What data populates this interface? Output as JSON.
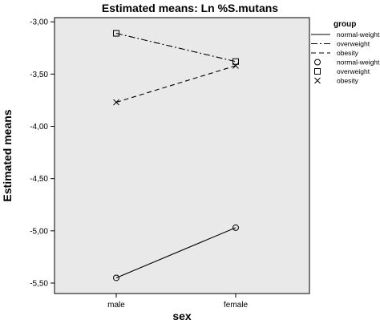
{
  "chart_data": {
    "type": "line",
    "title": "Estimated means: Ln %S.mutans",
    "xlabel": "sex",
    "ylabel": "Estimated means",
    "categories": [
      "male",
      "female"
    ],
    "ylim": [
      -5.6,
      -2.96
    ],
    "yticks": [
      -3.0,
      -3.5,
      -4.0,
      -4.5,
      -5.0,
      -5.5
    ],
    "ytick_labels": [
      "-3,00",
      "-3,50",
      "-4,00",
      "-4,50",
      "-5,00",
      "-5,50"
    ],
    "grid": false,
    "legend_position": "right",
    "legend_title": "group",
    "legend_entries": [
      {
        "label": "normal-weight",
        "kind": "line",
        "dash": "solid"
      },
      {
        "label": "overweight",
        "kind": "line",
        "dash": "dashdot"
      },
      {
        "label": "obesity",
        "kind": "line",
        "dash": "dash"
      },
      {
        "label": "normal-weight",
        "kind": "marker",
        "marker": "circle"
      },
      {
        "label": "overweight",
        "kind": "marker",
        "marker": "square"
      },
      {
        "label": "obesity",
        "kind": "marker",
        "marker": "x"
      }
    ],
    "series": [
      {
        "name": "normal-weight",
        "values": [
          -5.45,
          -4.97
        ],
        "dash": "solid",
        "marker": "circle"
      },
      {
        "name": "overweight",
        "values": [
          -3.11,
          -3.38
        ],
        "dash": "dashdot",
        "marker": "square"
      },
      {
        "name": "obesity",
        "values": [
          -3.77,
          -3.42
        ],
        "dash": "dash",
        "marker": "x"
      }
    ],
    "colors": {
      "plot_background": "#e9e9e9",
      "line": "#000000"
    }
  }
}
